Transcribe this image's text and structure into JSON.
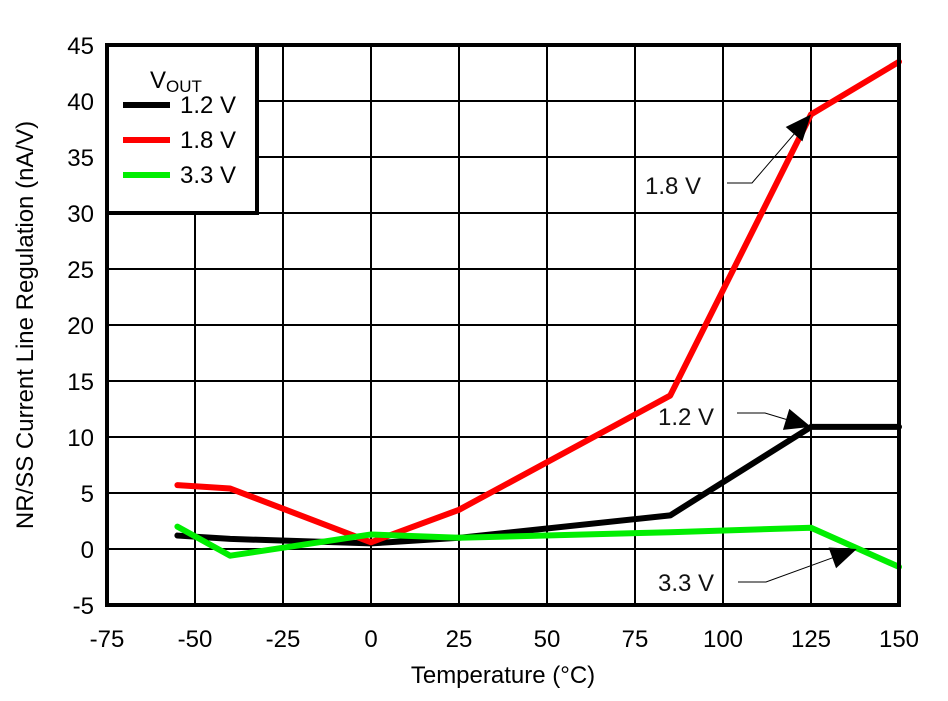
{
  "chart_data": {
    "type": "line",
    "xlabel": "Temperature (°C)",
    "ylabel": "NR/SS Current Line Regulation (nA/V)",
    "xlim": [
      -75,
      150
    ],
    "ylim": [
      -5,
      45
    ],
    "xticks": [
      -75,
      -50,
      -25,
      0,
      25,
      50,
      75,
      100,
      125,
      150
    ],
    "yticks": [
      -5,
      0,
      5,
      10,
      15,
      20,
      25,
      30,
      35,
      40,
      45
    ],
    "grid": true,
    "legend": {
      "title_main": "V",
      "title_sub": "OUT",
      "placement": "top-left"
    },
    "series": [
      {
        "name": "1.2 V",
        "color": "#000000",
        "x": [
          -55,
          -40,
          0,
          25,
          85,
          125,
          150
        ],
        "y": [
          1.2,
          0.9,
          0.5,
          1.0,
          3.0,
          10.9,
          10.9
        ]
      },
      {
        "name": "1.8 V",
        "color": "#ff0000",
        "x": [
          -55,
          -40,
          0,
          25,
          85,
          125,
          150
        ],
        "y": [
          5.7,
          5.4,
          0.6,
          3.5,
          13.7,
          38.8,
          43.5
        ]
      },
      {
        "name": "3.3 V",
        "color": "#00ee00",
        "x": [
          -55,
          -40,
          0,
          25,
          85,
          125,
          150
        ],
        "y": [
          2.0,
          -0.6,
          1.3,
          1.0,
          1.5,
          1.9,
          -1.6
        ]
      }
    ],
    "annotations": [
      {
        "text": "1.8 V",
        "target": [
          125,
          38.8
        ]
      },
      {
        "text": "1.2 V",
        "target": [
          125,
          10.9
        ]
      },
      {
        "text": "3.3 V",
        "target": [
          138,
          0
        ]
      }
    ]
  }
}
